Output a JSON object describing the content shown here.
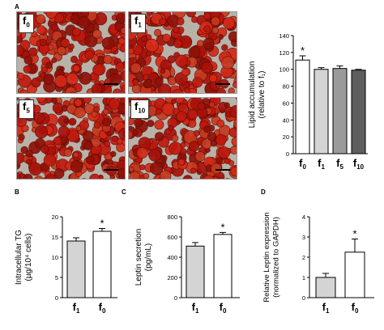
{
  "panel_labels": {
    "a": "A",
    "b": "B",
    "c": "C",
    "d": "D"
  },
  "micrographs": [
    {
      "base": "f",
      "sub": "0"
    },
    {
      "base": "f",
      "sub": "1"
    },
    {
      "base": "f",
      "sub": "5"
    },
    {
      "base": "f",
      "sub": "10"
    }
  ],
  "colors": {
    "white": "#ffffff",
    "light": "#d4d4d4",
    "mid": "#9a9a9a",
    "dark": "#5e5e5e",
    "stain": "#c0180e"
  },
  "chart_data": [
    {
      "type": "bar",
      "id": "A",
      "title": "",
      "ylabel_lines": [
        "Lipid accumulation",
        "(relative to f₁)"
      ],
      "categories": [
        {
          "base": "f",
          "sub": "0"
        },
        {
          "base": "f",
          "sub": "1"
        },
        {
          "base": "f",
          "sub": "5"
        },
        {
          "base": "f",
          "sub": "10"
        }
      ],
      "values": [
        111,
        100,
        101,
        99
      ],
      "errors": [
        5,
        2,
        3,
        1
      ],
      "ylim": [
        0,
        140
      ],
      "yticks": [
        0,
        20,
        40,
        60,
        80,
        100,
        120,
        140
      ],
      "significance": [
        "*",
        "",
        "",
        ""
      ]
    },
    {
      "type": "bar",
      "id": "B",
      "title": "",
      "ylabel_lines": [
        "Intracellular TG",
        "(µg/10⁴ cells)"
      ],
      "categories": [
        {
          "base": "f",
          "sub": "1"
        },
        {
          "base": "f",
          "sub": "0"
        }
      ],
      "values": [
        14.0,
        16.4
      ],
      "errors": [
        0.8,
        0.7
      ],
      "ylim": [
        0,
        20
      ],
      "yticks": [
        0,
        5,
        10,
        15,
        20
      ],
      "significance": [
        "",
        "*"
      ]
    },
    {
      "type": "bar",
      "id": "C",
      "title": "",
      "ylabel_lines": [
        "Leptin secretion",
        "(pg/mL)"
      ],
      "categories": [
        {
          "base": "f",
          "sub": "1"
        },
        {
          "base": "f",
          "sub": "0"
        }
      ],
      "values": [
        510,
        625
      ],
      "errors": [
        35,
        20
      ],
      "ylim": [
        0,
        800
      ],
      "yticks": [
        0,
        200,
        400,
        600,
        800
      ],
      "significance": [
        "",
        "*"
      ]
    },
    {
      "type": "bar",
      "id": "D",
      "title": "",
      "ylabel_lines": [
        "Relative Leptin expression",
        "(normalized to GAPDH)"
      ],
      "categories": [
        {
          "base": "f",
          "sub": "1"
        },
        {
          "base": "f",
          "sub": "0"
        }
      ],
      "values": [
        1.0,
        2.25
      ],
      "errors": [
        0.2,
        0.65
      ],
      "ylim": [
        0,
        4
      ],
      "yticks": [
        0,
        1,
        2,
        3,
        4
      ],
      "significance": [
        "",
        "*"
      ]
    }
  ]
}
